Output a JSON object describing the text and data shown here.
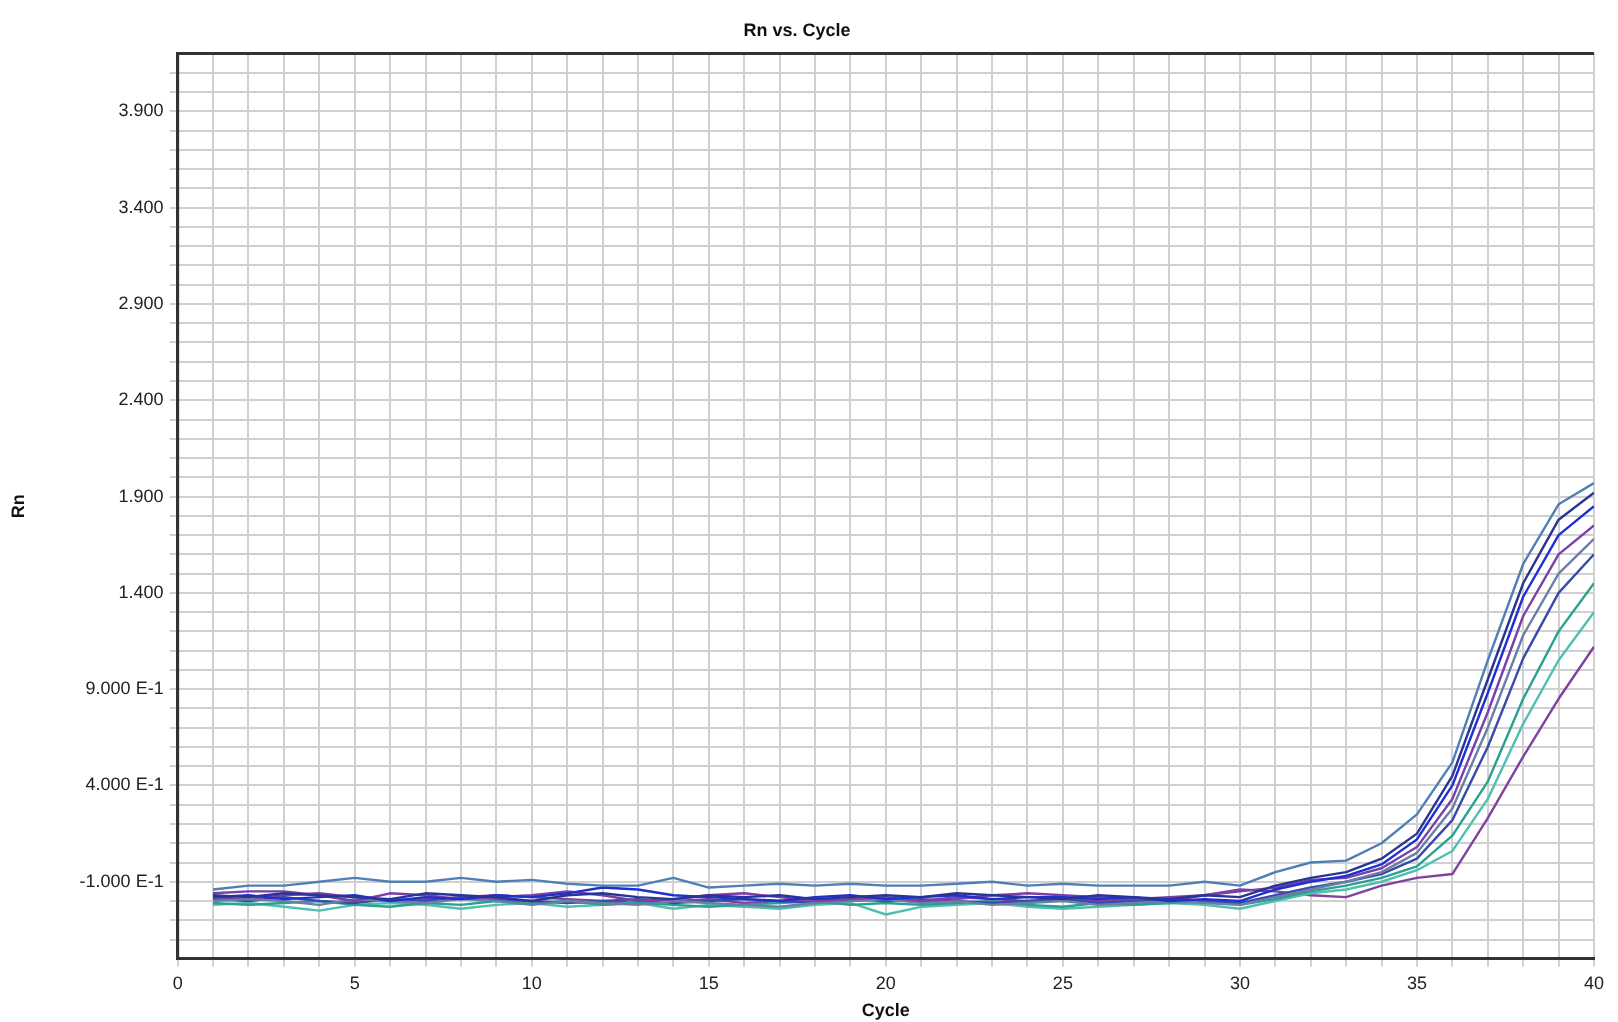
{
  "chart_data": {
    "type": "line",
    "title": "Rn vs. Cycle",
    "xlabel": "Cycle",
    "ylabel": "Rn",
    "x": [
      1,
      2,
      3,
      4,
      5,
      6,
      7,
      8,
      9,
      10,
      11,
      12,
      13,
      14,
      15,
      16,
      17,
      18,
      19,
      20,
      21,
      22,
      23,
      24,
      25,
      26,
      27,
      28,
      29,
      30,
      31,
      32,
      33,
      34,
      35,
      36,
      37,
      38,
      39,
      40
    ],
    "xlim": [
      0,
      40
    ],
    "xticks": [
      0,
      {
        "value": 1,
        "label": null
      },
      {
        "value": 2,
        "label": null
      },
      {
        "value": 3,
        "label": null
      },
      {
        "value": 4,
        "label": null
      },
      5,
      {
        "value": 6,
        "label": null
      },
      {
        "value": 7,
        "label": null
      },
      {
        "value": 8,
        "label": null
      },
      {
        "value": 9,
        "label": null
      },
      10,
      {
        "value": 11,
        "label": null
      },
      {
        "value": 12,
        "label": null
      },
      {
        "value": 13,
        "label": null
      },
      {
        "value": 14,
        "label": null
      },
      15,
      {
        "value": 16,
        "label": null
      },
      {
        "value": 17,
        "label": null
      },
      {
        "value": 18,
        "label": null
      },
      {
        "value": 19,
        "label": null
      },
      20,
      {
        "value": 21,
        "label": null
      },
      {
        "value": 22,
        "label": null
      },
      {
        "value": 23,
        "label": null
      },
      {
        "value": 24,
        "label": null
      },
      25,
      {
        "value": 26,
        "label": null
      },
      {
        "value": 27,
        "label": null
      },
      {
        "value": 28,
        "label": null
      },
      {
        "value": 29,
        "label": null
      },
      30,
      {
        "value": 31,
        "label": null
      },
      {
        "value": 32,
        "label": null
      },
      {
        "value": 33,
        "label": null
      },
      {
        "value": 34,
        "label": null
      },
      35,
      {
        "value": 36,
        "label": null
      },
      {
        "value": 37,
        "label": null
      },
      {
        "value": 38,
        "label": null
      },
      {
        "value": 39,
        "label": null
      },
      40
    ],
    "ylim": [
      -0.5,
      4.2
    ],
    "yticks": [
      {
        "value": -0.4,
        "label": null
      },
      {
        "value": -0.3,
        "label": null
      },
      {
        "value": -0.2,
        "label": null
      },
      {
        "value": -0.1,
        "label": "-1.000 E-1"
      },
      {
        "value": 0,
        "label": null
      },
      {
        "value": 0.1,
        "label": null
      },
      {
        "value": 0.2,
        "label": null
      },
      {
        "value": 0.3,
        "label": null
      },
      {
        "value": 0.4,
        "label": "4.000 E-1"
      },
      {
        "value": 0.5,
        "label": null
      },
      {
        "value": 0.6,
        "label": null
      },
      {
        "value": 0.7,
        "label": null
      },
      {
        "value": 0.8,
        "label": null
      },
      {
        "value": 0.9,
        "label": "9.000 E-1"
      },
      {
        "value": 1,
        "label": null
      },
      {
        "value": 1.1,
        "label": null
      },
      {
        "value": 1.2,
        "label": null
      },
      {
        "value": 1.3,
        "label": null
      },
      {
        "value": 1.4,
        "label": "1.400"
      },
      {
        "value": 1.5,
        "label": null
      },
      {
        "value": 1.6,
        "label": null
      },
      {
        "value": 1.7,
        "label": null
      },
      {
        "value": 1.8,
        "label": null
      },
      {
        "value": 1.9,
        "label": "1.900"
      },
      {
        "value": 2,
        "label": null
      },
      {
        "value": 2.1,
        "label": null
      },
      {
        "value": 2.2,
        "label": null
      },
      {
        "value": 2.3,
        "label": null
      },
      {
        "value": 2.4,
        "label": "2.400"
      },
      {
        "value": 2.5,
        "label": null
      },
      {
        "value": 2.6,
        "label": null
      },
      {
        "value": 2.7,
        "label": null
      },
      {
        "value": 2.8,
        "label": null
      },
      {
        "value": 2.9,
        "label": "2.900"
      },
      {
        "value": 3,
        "label": null
      },
      {
        "value": 3.1,
        "label": null
      },
      {
        "value": 3.2,
        "label": null
      },
      {
        "value": 3.3,
        "label": null
      },
      {
        "value": 3.4,
        "label": "3.400"
      },
      {
        "value": 3.5,
        "label": null
      },
      {
        "value": 3.6,
        "label": null
      },
      {
        "value": 3.7,
        "label": null
      },
      {
        "value": 3.8,
        "label": null
      },
      {
        "value": 3.9,
        "label": "3.900"
      },
      {
        "value": 4,
        "label": null
      },
      {
        "value": 4.1,
        "label": null
      }
    ],
    "grid": true,
    "legend": false,
    "marker": "none",
    "line_style": "solid",
    "series": [
      {
        "color": "#4f7fb5",
        "values": [
          -0.14,
          -0.12,
          -0.12,
          -0.1,
          -0.08,
          -0.1,
          -0.1,
          -0.08,
          -0.1,
          -0.09,
          -0.11,
          -0.12,
          -0.12,
          -0.08,
          -0.13,
          -0.12,
          -0.11,
          -0.12,
          -0.11,
          -0.12,
          -0.12,
          -0.11,
          -0.1,
          -0.12,
          -0.11,
          -0.12,
          -0.12,
          -0.12,
          -0.1,
          -0.12,
          -0.05,
          0.0,
          0.01,
          0.1,
          0.25,
          0.52,
          1.05,
          1.55,
          1.86,
          1.97
        ]
      },
      {
        "color": "#283593",
        "values": [
          -0.17,
          -0.18,
          -0.16,
          -0.17,
          -0.18,
          -0.19,
          -0.16,
          -0.17,
          -0.18,
          -0.2,
          -0.17,
          -0.16,
          -0.18,
          -0.19,
          -0.17,
          -0.18,
          -0.17,
          -0.19,
          -0.18,
          -0.17,
          -0.18,
          -0.16,
          -0.17,
          -0.18,
          -0.19,
          -0.17,
          -0.18,
          -0.19,
          -0.17,
          -0.18,
          -0.12,
          -0.08,
          -0.05,
          0.02,
          0.15,
          0.45,
          0.95,
          1.45,
          1.78,
          1.92
        ]
      },
      {
        "color": "#1f2fd0",
        "values": [
          -0.18,
          -0.17,
          -0.19,
          -0.18,
          -0.17,
          -0.2,
          -0.18,
          -0.19,
          -0.17,
          -0.18,
          -0.16,
          -0.13,
          -0.14,
          -0.17,
          -0.18,
          -0.19,
          -0.2,
          -0.18,
          -0.17,
          -0.19,
          -0.18,
          -0.17,
          -0.19,
          -0.18,
          -0.18,
          -0.19,
          -0.18,
          -0.2,
          -0.19,
          -0.2,
          -0.14,
          -0.1,
          -0.07,
          -0.01,
          0.12,
          0.4,
          0.88,
          1.38,
          1.7,
          1.85
        ]
      },
      {
        "color": "#7b3fa8",
        "values": [
          -0.16,
          -0.15,
          -0.15,
          -0.17,
          -0.2,
          -0.16,
          -0.17,
          -0.19,
          -0.18,
          -0.17,
          -0.15,
          -0.17,
          -0.2,
          -0.19,
          -0.17,
          -0.16,
          -0.18,
          -0.2,
          -0.19,
          -0.18,
          -0.2,
          -0.19,
          -0.17,
          -0.16,
          -0.17,
          -0.18,
          -0.19,
          -0.18,
          -0.17,
          -0.15,
          -0.13,
          -0.09,
          -0.08,
          -0.03,
          0.08,
          0.33,
          0.78,
          1.28,
          1.6,
          1.75
        ]
      },
      {
        "color": "#6a7fa8",
        "values": [
          -0.2,
          -0.19,
          -0.2,
          -0.22,
          -0.19,
          -0.2,
          -0.21,
          -0.19,
          -0.2,
          -0.22,
          -0.2,
          -0.21,
          -0.22,
          -0.2,
          -0.21,
          -0.22,
          -0.23,
          -0.21,
          -0.2,
          -0.19,
          -0.21,
          -0.2,
          -0.22,
          -0.21,
          -0.2,
          -0.22,
          -0.21,
          -0.2,
          -0.21,
          -0.22,
          -0.18,
          -0.14,
          -0.1,
          -0.05,
          0.05,
          0.28,
          0.7,
          1.18,
          1.5,
          1.68
        ]
      },
      {
        "color": "#3a4aa8",
        "values": [
          -0.19,
          -0.2,
          -0.18,
          -0.2,
          -0.21,
          -0.19,
          -0.2,
          -0.18,
          -0.19,
          -0.2,
          -0.21,
          -0.2,
          -0.19,
          -0.21,
          -0.2,
          -0.19,
          -0.2,
          -0.21,
          -0.19,
          -0.2,
          -0.19,
          -0.2,
          -0.21,
          -0.2,
          -0.19,
          -0.21,
          -0.2,
          -0.19,
          -0.2,
          -0.21,
          -0.17,
          -0.13,
          -0.1,
          -0.06,
          0.02,
          0.22,
          0.6,
          1.06,
          1.4,
          1.6
        ]
      },
      {
        "color": "#2aa090",
        "values": [
          -0.21,
          -0.22,
          -0.21,
          -0.2,
          -0.22,
          -0.23,
          -0.21,
          -0.22,
          -0.2,
          -0.21,
          -0.2,
          -0.22,
          -0.21,
          -0.22,
          -0.23,
          -0.22,
          -0.21,
          -0.2,
          -0.22,
          -0.21,
          -0.22,
          -0.21,
          -0.2,
          -0.22,
          -0.23,
          -0.21,
          -0.22,
          -0.21,
          -0.2,
          -0.22,
          -0.19,
          -0.15,
          -0.12,
          -0.08,
          -0.02,
          0.14,
          0.42,
          0.85,
          1.2,
          1.45
        ]
      },
      {
        "color": "#4ec0b0",
        "values": [
          -0.22,
          -0.21,
          -0.23,
          -0.25,
          -0.22,
          -0.21,
          -0.22,
          -0.24,
          -0.22,
          -0.21,
          -0.23,
          -0.22,
          -0.21,
          -0.24,
          -0.22,
          -0.23,
          -0.24,
          -0.22,
          -0.21,
          -0.27,
          -0.23,
          -0.22,
          -0.21,
          -0.23,
          -0.24,
          -0.23,
          -0.22,
          -0.21,
          -0.22,
          -0.24,
          -0.2,
          -0.16,
          -0.14,
          -0.1,
          -0.04,
          0.06,
          0.33,
          0.72,
          1.05,
          1.3
        ]
      },
      {
        "color": "#8040a0",
        "values": [
          -0.18,
          -0.19,
          -0.17,
          -0.16,
          -0.18,
          -0.2,
          -0.19,
          -0.18,
          -0.17,
          -0.18,
          -0.19,
          -0.2,
          -0.21,
          -0.2,
          -0.19,
          -0.21,
          -0.2,
          -0.19,
          -0.2,
          -0.19,
          -0.2,
          -0.18,
          -0.19,
          -0.2,
          -0.19,
          -0.2,
          -0.19,
          -0.2,
          -0.17,
          -0.14,
          -0.15,
          -0.17,
          -0.18,
          -0.12,
          -0.08,
          -0.06,
          0.23,
          0.55,
          0.85,
          1.12
        ]
      }
    ]
  }
}
